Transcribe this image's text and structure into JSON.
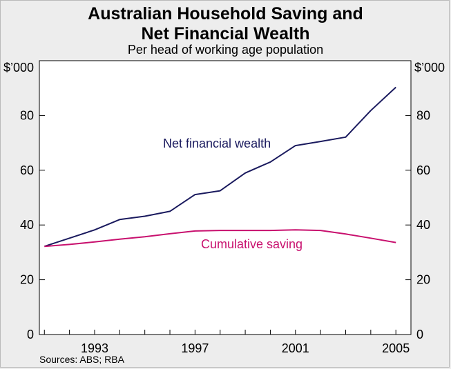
{
  "title_line1": "Australian Household Saving and",
  "title_line2": "Net Financial Wealth",
  "subtitle": "Per head of working age population",
  "source": "Sources: ABS; RBA",
  "chart_data": {
    "type": "line",
    "yunit": "$’000",
    "ylim": [
      0,
      100
    ],
    "yticks": [
      0,
      20,
      40,
      60,
      80
    ],
    "xlim": [
      1990.8,
      2005.6
    ],
    "xticks": [
      1993,
      1997,
      2001,
      2005
    ],
    "grid": false,
    "legend": "inline labels",
    "series": [
      {
        "name": "Net financial wealth",
        "color": "#1a1a5e",
        "x": [
          1991,
          1992,
          1993,
          1994,
          1995,
          1996,
          1997,
          1998,
          1999,
          2000,
          2001,
          2002,
          2003,
          2004,
          2005
        ],
        "values": [
          32.2,
          35.2,
          38.2,
          42.0,
          43.2,
          45.0,
          51.1,
          52.5,
          59.0,
          63.0,
          69.0,
          70.5,
          72.1,
          81.8,
          90.3
        ]
      },
      {
        "name": "Cumulative saving",
        "color": "#c8106e",
        "x": [
          1991,
          1992,
          1993,
          1994,
          1995,
          1996,
          1997,
          1998,
          1999,
          2000,
          2001,
          2002,
          2003,
          2004,
          2005
        ],
        "values": [
          32.2,
          32.9,
          33.8,
          34.8,
          35.7,
          36.8,
          37.8,
          38.0,
          38.0,
          38.0,
          38.2,
          38.0,
          36.7,
          35.2,
          33.6
        ]
      }
    ]
  }
}
